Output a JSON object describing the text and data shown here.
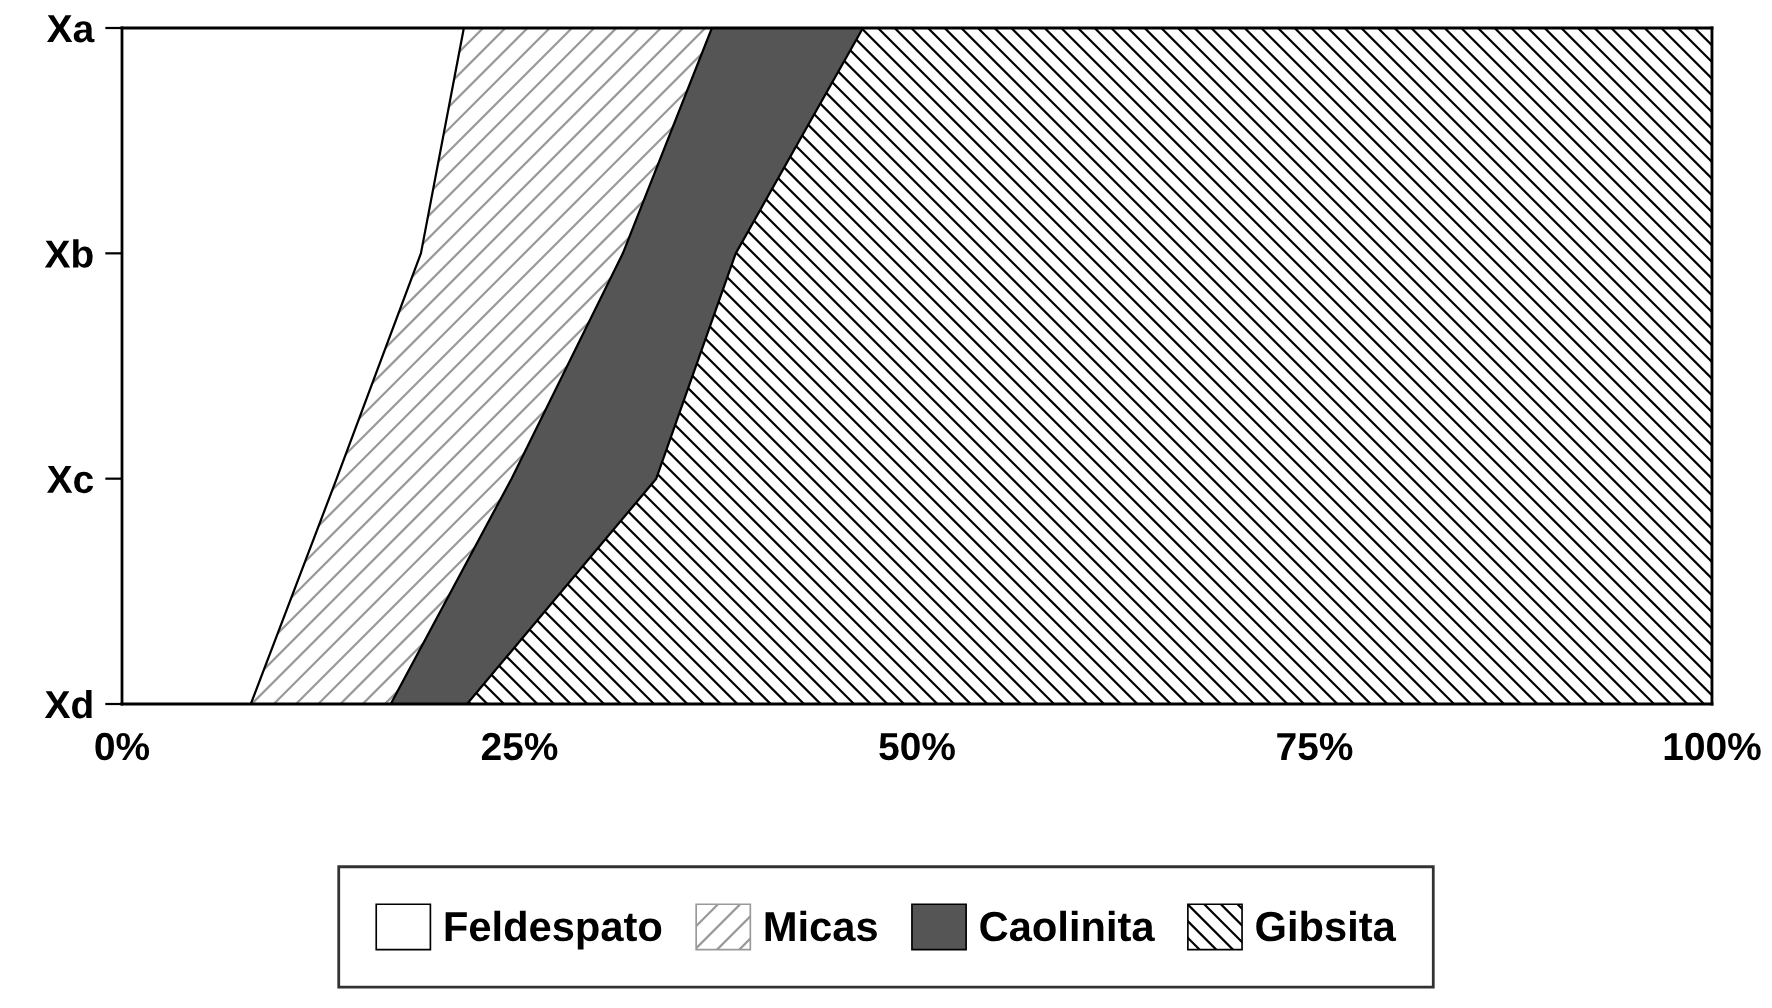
{
  "chart_data": {
    "type": "area",
    "orientation": "horizontal",
    "stacked": true,
    "categories": [
      "Xa",
      "Xb",
      "Xc",
      "Xd"
    ],
    "series": [
      {
        "name": "Feldespato",
        "color": "#ffffff",
        "values": [
          21.5,
          18.8,
          13.5,
          8.1
        ]
      },
      {
        "name": "Micas",
        "color": "#ffffff",
        "values": [
          15.6,
          12.7,
          11.0,
          8.8
        ]
      },
      {
        "name": "Caolinita",
        "color": "#555555",
        "values": [
          9.5,
          7.1,
          9.1,
          4.8
        ]
      },
      {
        "name": "Gibsita",
        "color": "#ffffff",
        "values": [
          53.4,
          61.4,
          66.4,
          78.3
        ]
      }
    ],
    "xlim": [
      0,
      100
    ],
    "xticks": [
      {
        "value": 0,
        "label": "0%"
      },
      {
        "value": 25,
        "label": "25%"
      },
      {
        "value": 50,
        "label": "50%"
      },
      {
        "value": 75,
        "label": "75%"
      },
      {
        "value": 100,
        "label": "100%"
      }
    ],
    "grid": false,
    "legend": "bottom"
  }
}
